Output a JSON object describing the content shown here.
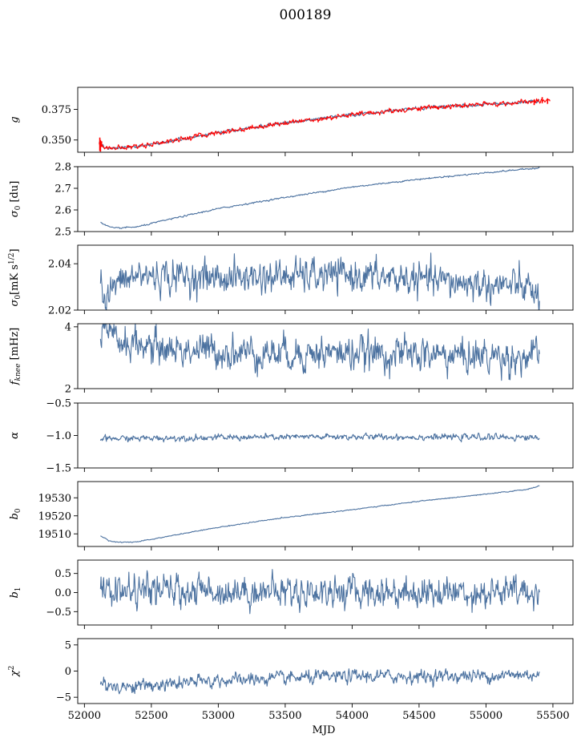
{
  "figure_title": "000189",
  "colors": {
    "main": "#4c72a0",
    "overlay": "#ff0000"
  },
  "chart_data": [
    {
      "type": "line",
      "id": "g",
      "ylabel_html": "<tspan font-style='italic'>g</tspan>",
      "ylim": [
        0.34,
        0.393
      ],
      "yticks": [
        0.35,
        0.375
      ],
      "ytick_labels": [
        "0.350",
        "0.375"
      ],
      "xlim": [
        51950,
        55650
      ],
      "x_range": [
        52110,
        55480
      ],
      "series": [
        {
          "kind": "model",
          "color": "#4c72a0",
          "knots": [
            [
              52110,
              0.3475
            ],
            [
              52150,
              0.344
            ],
            [
              52230,
              0.343
            ],
            [
              52400,
              0.345
            ],
            [
              52600,
              0.3485
            ],
            [
              53000,
              0.356
            ],
            [
              53500,
              0.364
            ],
            [
              54000,
              0.3705
            ],
            [
              54500,
              0.376
            ],
            [
              55000,
              0.379
            ],
            [
              55300,
              0.381
            ],
            [
              55400,
              0.3825
            ]
          ],
          "x_end": 55400,
          "noise": 0.0008
        },
        {
          "kind": "data",
          "color": "#ff0000",
          "knots": [
            [
              52110,
              0.348
            ],
            [
              52150,
              0.344
            ],
            [
              52230,
              0.343
            ],
            [
              52400,
              0.345
            ],
            [
              52600,
              0.3485
            ],
            [
              53000,
              0.356
            ],
            [
              53500,
              0.364
            ],
            [
              54000,
              0.3705
            ],
            [
              54500,
              0.376
            ],
            [
              55000,
              0.379
            ],
            [
              55300,
              0.381
            ],
            [
              55480,
              0.3825
            ]
          ],
          "x_end": 55480,
          "noise": 0.0012,
          "spikes": [
            [
              52115,
              0.341,
              0.352
            ],
            [
              52120,
              0.3405,
              0.35
            ],
            [
              52128,
              0.3445,
              0.349
            ],
            [
              55360,
              0.3785,
              0.383
            ],
            [
              55420,
              0.38,
              0.385
            ],
            [
              55460,
              0.3795,
              0.384
            ]
          ]
        }
      ]
    },
    {
      "type": "line",
      "id": "sigma0",
      "ylabel_html": "<tspan font-style='italic'>σ</tspan><tspan font-size='9' dy='3'>0</tspan><tspan dy='-3'> [du]</tspan>",
      "ylim": [
        2.5,
        2.8
      ],
      "yticks": [
        2.5,
        2.6,
        2.7,
        2.8
      ],
      "ytick_labels": [
        "2.5",
        "2.6",
        "2.7",
        "2.8"
      ],
      "xlim": [
        51950,
        55650
      ],
      "series": [
        {
          "kind": "model",
          "color": "#4c72a0",
          "knots": [
            [
              52120,
              2.545
            ],
            [
              52160,
              2.528
            ],
            [
              52220,
              2.515
            ],
            [
              52400,
              2.522
            ],
            [
              52600,
              2.552
            ],
            [
              53000,
              2.606
            ],
            [
              53500,
              2.658
            ],
            [
              54000,
              2.706
            ],
            [
              54500,
              2.742
            ],
            [
              55000,
              2.772
            ],
            [
              55400,
              2.795
            ]
          ],
          "x_end": 55400,
          "noise": 0.002
        }
      ]
    },
    {
      "type": "line",
      "id": "sigma0_white",
      "ylabel_html": "<tspan font-style='italic'>σ</tspan><tspan font-size='9' dy='3'>0</tspan><tspan dy='-3'>[mK s</tspan><tspan font-size='9' dy='-5'>1/2</tspan><tspan dy='5'>]</tspan>",
      "ylim": [
        2.02,
        2.048
      ],
      "yticks": [
        2.02,
        2.04
      ],
      "ytick_labels": [
        "2.02",
        "2.04"
      ],
      "xlim": [
        51950,
        55650
      ],
      "series": [
        {
          "kind": "model",
          "color": "#4c72a0",
          "knots": [
            [
              52120,
              2.038
            ],
            [
              52140,
              2.025
            ],
            [
              52160,
              2.021
            ],
            [
              52200,
              2.03
            ],
            [
              52400,
              2.035
            ],
            [
              53000,
              2.034
            ],
            [
              54000,
              2.035
            ],
            [
              55000,
              2.031
            ],
            [
              55300,
              2.03
            ],
            [
              55400,
              2.025
            ]
          ],
          "x_end": 55400,
          "noise": 0.0042
        }
      ]
    },
    {
      "type": "line",
      "id": "fknee",
      "ylabel_html": "<tspan font-style='italic'>f</tspan><tspan font-size='9' font-style='italic' dy='3'>knee</tspan><tspan dy='-3'> [mHz]</tspan>",
      "ylim": [
        2.0,
        4.1
      ],
      "yticks": [
        2,
        4
      ],
      "ytick_labels": [
        "2",
        "4"
      ],
      "xlim": [
        51950,
        55650
      ],
      "series": [
        {
          "kind": "model",
          "color": "#4c72a0",
          "knots": [
            [
              52120,
              3.75
            ],
            [
              52300,
              3.5
            ],
            [
              52600,
              3.3
            ],
            [
              53000,
              3.2
            ],
            [
              53500,
              3.15
            ],
            [
              54000,
              3.15
            ],
            [
              54500,
              3.1
            ],
            [
              55000,
              3.05
            ],
            [
              55400,
              3.0
            ]
          ],
          "x_end": 55400,
          "noise": 0.33
        }
      ]
    },
    {
      "type": "line",
      "id": "alpha",
      "ylabel_html": "<tspan font-style='italic'>α</tspan>",
      "ylim": [
        -1.5,
        -0.5
      ],
      "yticks": [
        -1.5,
        -1.0,
        -0.5
      ],
      "ytick_labels": [
        "−1.5",
        "−1.0",
        "−0.5"
      ],
      "xlim": [
        51950,
        55650
      ],
      "series": [
        {
          "kind": "model",
          "color": "#4c72a0",
          "knots": [
            [
              52120,
              -1.05
            ],
            [
              53000,
              -1.03
            ],
            [
              54000,
              -1.02
            ],
            [
              55400,
              -1.03
            ]
          ],
          "x_end": 55400,
          "noise": 0.028
        }
      ]
    },
    {
      "type": "line",
      "id": "b0",
      "ylabel_html": "<tspan font-style='italic'>b</tspan><tspan font-size='9' dy='3'>0</tspan>",
      "ylim": [
        19503,
        19539
      ],
      "yticks": [
        19510,
        19520,
        19530
      ],
      "ytick_labels": [
        "19510",
        "19520",
        "19530"
      ],
      "xlim": [
        51950,
        55650
      ],
      "series": [
        {
          "kind": "model",
          "color": "#4c72a0",
          "knots": [
            [
              52120,
              19509
            ],
            [
              52180,
              19506.2
            ],
            [
              52260,
              19505.3
            ],
            [
              52400,
              19505.6
            ],
            [
              52600,
              19508.3
            ],
            [
              53000,
              19513.6
            ],
            [
              53500,
              19519.1
            ],
            [
              54000,
              19523.4
            ],
            [
              54500,
              19528.1
            ],
            [
              55000,
              19532.0
            ],
            [
              55300,
              19534.6
            ],
            [
              55400,
              19536.6
            ]
          ],
          "x_end": 55400,
          "noise": 0.15
        }
      ]
    },
    {
      "type": "line",
      "id": "b1",
      "ylabel_html": "<tspan font-style='italic'>b</tspan><tspan font-size='9' dy='3'>1</tspan>",
      "ylim": [
        -0.85,
        0.85
      ],
      "yticks": [
        -0.5,
        0.0,
        0.5
      ],
      "ytick_labels": [
        "−0.5",
        "0.0",
        "0.5"
      ],
      "xlim": [
        51950,
        55650
      ],
      "series": [
        {
          "kind": "model",
          "color": "#4c72a0",
          "knots": [
            [
              52120,
              0.05
            ],
            [
              55400,
              0.0
            ]
          ],
          "x_end": 55400,
          "noise": 0.24
        }
      ]
    },
    {
      "type": "line",
      "id": "chi2",
      "ylabel_html": "<tspan font-style='italic'>χ</tspan><tspan font-size='9' dy='-5'>2</tspan>",
      "ylim": [
        -6.2,
        6.2
      ],
      "yticks": [
        -5,
        0,
        5
      ],
      "ytick_labels": [
        "−5",
        "0",
        "5"
      ],
      "xlim": [
        51950,
        55650
      ],
      "xlabel": "MJD",
      "xticks": [
        52000,
        52500,
        53000,
        53500,
        54000,
        54500,
        55000,
        55500
      ],
      "xtick_labels": [
        "52000",
        "52500",
        "53000",
        "53500",
        "54000",
        "54500",
        "55000",
        "55500"
      ],
      "series": [
        {
          "kind": "model",
          "color": "#4c72a0",
          "knots": [
            [
              52120,
              -2.6
            ],
            [
              52300,
              -3.0
            ],
            [
              52600,
              -2.6
            ],
            [
              53000,
              -1.8
            ],
            [
              53500,
              -1.4
            ],
            [
              54000,
              -1.0
            ],
            [
              54500,
              -1.0
            ],
            [
              55000,
              -0.9
            ],
            [
              55400,
              -0.6
            ]
          ],
          "x_end": 55400,
          "noise": 0.75
        }
      ]
    }
  ]
}
